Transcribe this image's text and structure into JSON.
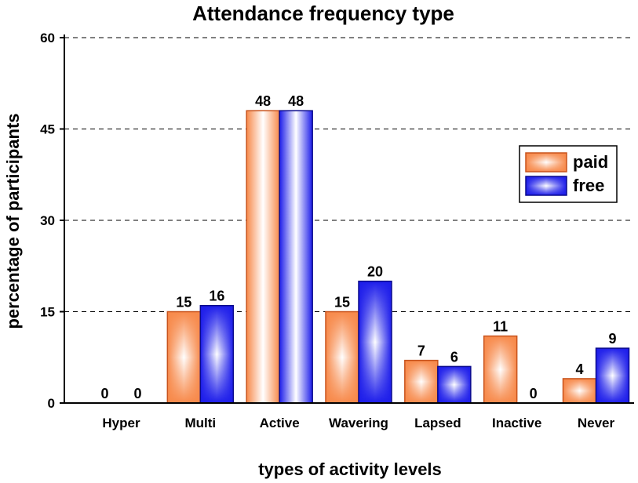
{
  "chart_data": {
    "type": "bar",
    "title": "Attendance frequency type",
    "xlabel": "types of activity levels",
    "ylabel": "percentage of participants",
    "categories": [
      "Hyper",
      "Multi",
      "Active",
      "Wavering",
      "Lapsed",
      "Inactive",
      "Never"
    ],
    "series": [
      {
        "name": "paid",
        "values": [
          0,
          15,
          48,
          15,
          7,
          11,
          4
        ],
        "color": "#f7894a",
        "edge": "#c8531c"
      },
      {
        "name": "free",
        "values": [
          0,
          16,
          48,
          20,
          6,
          0,
          9
        ],
        "color": "#1d1dea",
        "edge": "#0a0a8c"
      }
    ],
    "ylim": [
      0,
      60
    ],
    "yticks": [
      0,
      15,
      30,
      45,
      60
    ],
    "grid": "dashed horizontal",
    "legend_position": "right"
  }
}
